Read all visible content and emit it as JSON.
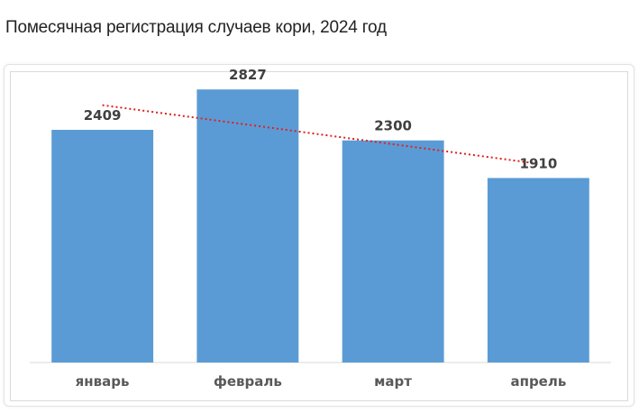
{
  "title": "Помесячная регистрация случаев кори, 2024 год",
  "chart_data": {
    "type": "bar",
    "categories": [
      "январь",
      "февраль",
      "март",
      "апрель"
    ],
    "values": [
      2409,
      2827,
      2300,
      1910
    ],
    "ylim": [
      0,
      3100
    ],
    "grid": false,
    "legend": "none",
    "trendline": {
      "type": "linear",
      "style": "dotted",
      "color": "#e02020"
    },
    "bar_color": "#5b9bd5",
    "data_labels": true
  }
}
